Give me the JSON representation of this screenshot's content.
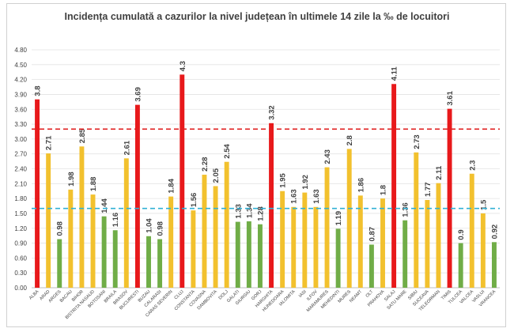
{
  "chart_data": {
    "type": "bar",
    "title": "Incidența cumulată a cazurilor la nivel județean în ultimele 14 zile la ‰ de locuitori",
    "xlabel": "",
    "ylabel": "",
    "ylim": [
      0,
      4.8
    ],
    "yticks": [
      "0.00",
      "0.30",
      "0.60",
      "0.90",
      "1.20",
      "1.50",
      "1.80",
      "2.10",
      "2.40",
      "2.70",
      "3.00",
      "3.30",
      "3.60",
      "3.90",
      "4.20",
      "4.50",
      "4.80"
    ],
    "categories": [
      "ALBA",
      "ARAD",
      "ARGES",
      "BACAU",
      "BIHOR",
      "BISTRITA NASAUD",
      "BOTOSANI",
      "BRAILA",
      "BRASOV",
      "BUCURESTI",
      "BUZAU",
      "CALARASI",
      "CARAS SEVERIN",
      "CLUJ",
      "CONSTANTA",
      "COVASNA",
      "DAMBOVITA",
      "DOLJ",
      "GALATI",
      "GIURGIU",
      "GORJ",
      "HARGHITA",
      "HUNEDOARA",
      "IALOMITA",
      "IASI",
      "ILFOV",
      "MARAMURES",
      "MEHEDINTI",
      "MURES",
      "NEAMT",
      "OLT",
      "PRAHOVA",
      "SALAJ",
      "SATU MARE",
      "SIBIU",
      "SUCEAVA",
      "TELEORMAN",
      "TIMIS",
      "TULCEA",
      "VALCEA",
      "VASLUI",
      "VRANCEA"
    ],
    "values": [
      3.8,
      2.71,
      0.98,
      1.98,
      2.85,
      1.88,
      1.44,
      1.16,
      2.61,
      3.69,
      1.04,
      0.98,
      1.84,
      4.3,
      1.56,
      2.28,
      2.05,
      2.54,
      1.33,
      1.34,
      1.28,
      3.32,
      1.95,
      1.63,
      1.92,
      1.63,
      2.43,
      1.19,
      2.8,
      1.86,
      0.87,
      1.8,
      4.11,
      1.36,
      2.73,
      1.77,
      2.11,
      3.61,
      0.9,
      2.3,
      1.5,
      0.92
    ],
    "value_labels": [
      "3.8",
      "2.71",
      "0.98",
      "1.98",
      "2.85",
      "1.88",
      "1.44",
      "1.16",
      "2.61",
      "3.69",
      "1.04",
      "0.98",
      "1.84",
      "4.3",
      "1.56",
      "2.28",
      "2.05",
      "2.54",
      "1.33",
      "1.34",
      "1.28",
      "3.32",
      "1.95",
      "1.63",
      "1.92",
      "1.63",
      "2.43",
      "1.19",
      "2.8",
      "1.86",
      "0.87",
      "1.8",
      "4.11",
      "1.36",
      "2.73",
      "1.77",
      "2.11",
      "3.61",
      "0.9",
      "2.3",
      "1.5",
      "0.92"
    ],
    "thresholds": [
      {
        "value": 3.2,
        "color": "#e02020",
        "style": "dashed"
      },
      {
        "value": 1.6,
        "color": "#31b0d5",
        "style": "dashed"
      }
    ],
    "colors": {
      "high": "#e8191b",
      "medium": "#f2c12e",
      "low": "#70ad47"
    },
    "grid": true,
    "legend": "none"
  }
}
